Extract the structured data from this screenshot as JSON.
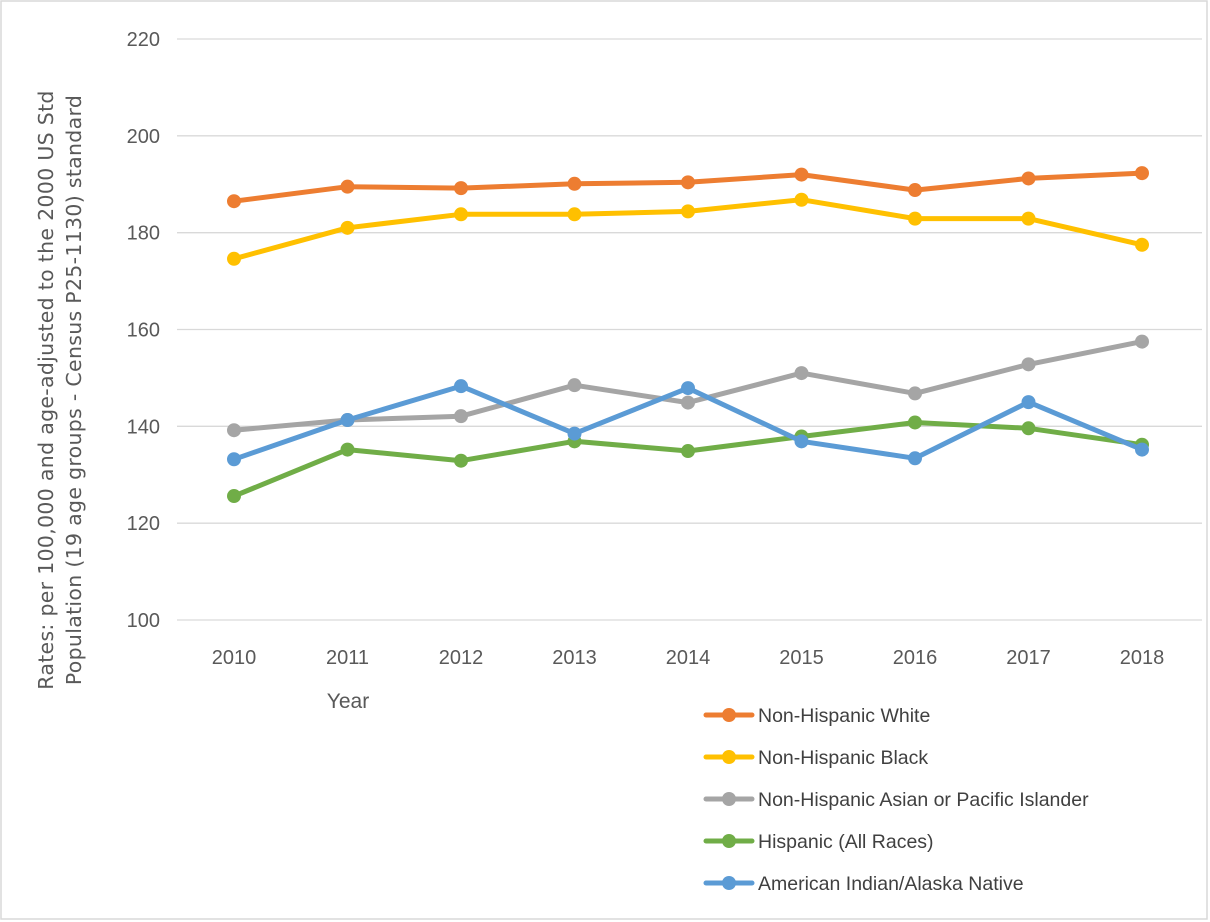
{
  "chart_data": {
    "type": "line",
    "title": "",
    "xlabel": "Year",
    "ylabel_lines": [
      "Rates: per 100,000 and age-adjusted to the 2000 US Std",
      "Population (19 age groups - Census P25-1130) standard"
    ],
    "x": [
      "2010",
      "2011",
      "2012",
      "2013",
      "2014",
      "2015",
      "2016",
      "2017",
      "2018"
    ],
    "ylim": [
      100,
      220
    ],
    "yticks": [
      100,
      120,
      140,
      160,
      180,
      200,
      220
    ],
    "grid": true,
    "legend_position": "bottom-right",
    "series": [
      {
        "name": "Non-Hispanic White",
        "color": "#ED7D31",
        "values": [
          186.5,
          189.5,
          189.2,
          190.1,
          190.4,
          192.0,
          188.8,
          191.2,
          192.3
        ]
      },
      {
        "name": "Non-Hispanic Black",
        "color": "#FFC000",
        "values": [
          174.6,
          181.0,
          183.8,
          183.8,
          184.4,
          186.8,
          182.9,
          182.9,
          177.5
        ]
      },
      {
        "name": "Non-Hispanic Asian or Pacific Islander",
        "color": "#A5A5A5",
        "values": [
          139.2,
          141.3,
          142.1,
          148.5,
          144.9,
          151.0,
          146.8,
          152.8,
          157.5
        ]
      },
      {
        "name": "Hispanic (All Races)",
        "color": "#70AD47",
        "values": [
          125.6,
          135.2,
          132.9,
          136.9,
          134.9,
          137.9,
          140.8,
          139.6,
          136.2
        ]
      },
      {
        "name": "American Indian/Alaska Native",
        "color": "#5B9BD5",
        "values": [
          133.2,
          141.3,
          148.3,
          138.5,
          147.9,
          136.9,
          133.4,
          145.0,
          135.2
        ]
      }
    ]
  }
}
